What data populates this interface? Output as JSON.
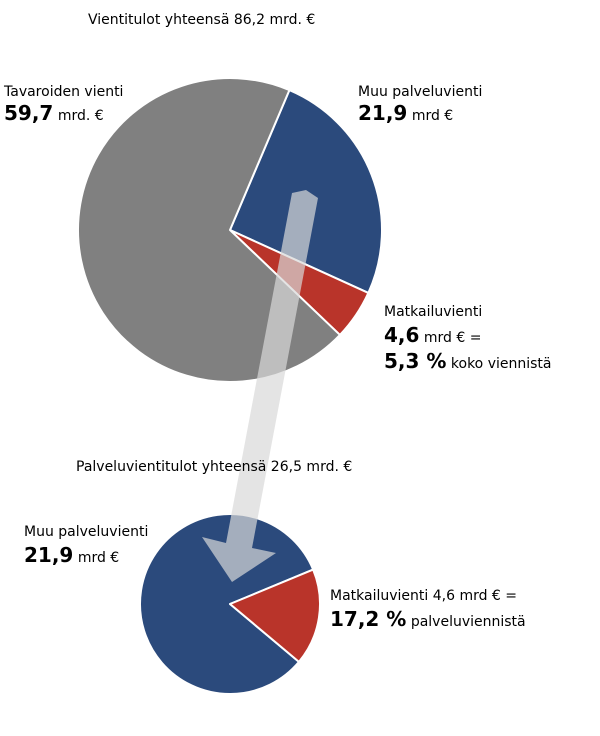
{
  "chart_data": [
    {
      "type": "pie",
      "title": "Vientitulot yhteensä  86,2 mrd. €",
      "slices": [
        {
          "label": "Tavaroiden vienti",
          "value": 59.7,
          "value_text": "59,7",
          "unit": "mrd. €",
          "color": "#808080"
        },
        {
          "label": "Muu palveluvienti",
          "value": 21.9,
          "value_text": "21,9",
          "unit": "mrd €",
          "color": "#2b4a7c"
        },
        {
          "label": "Matkailuvienti",
          "value": 4.6,
          "value_text": "4,6",
          "unit": "mrd € =",
          "share_text": "5,3 %",
          "share_suffix": "koko viennistä",
          "color": "#b9342a"
        }
      ]
    },
    {
      "type": "pie",
      "title": "Palveluvientitulot yhteensä 26,5 mrd. €",
      "slices": [
        {
          "label": "Muu palveluvienti",
          "value": 21.9,
          "value_text": "21,9",
          "unit": "mrd €",
          "color": "#2b4a7c"
        },
        {
          "label": "Matkailuvienti 4,6 mrd € =",
          "value": 4.6,
          "share_text": "17,2 %",
          "share_suffix": "palveluviennistä",
          "color": "#b9342a"
        }
      ]
    }
  ]
}
